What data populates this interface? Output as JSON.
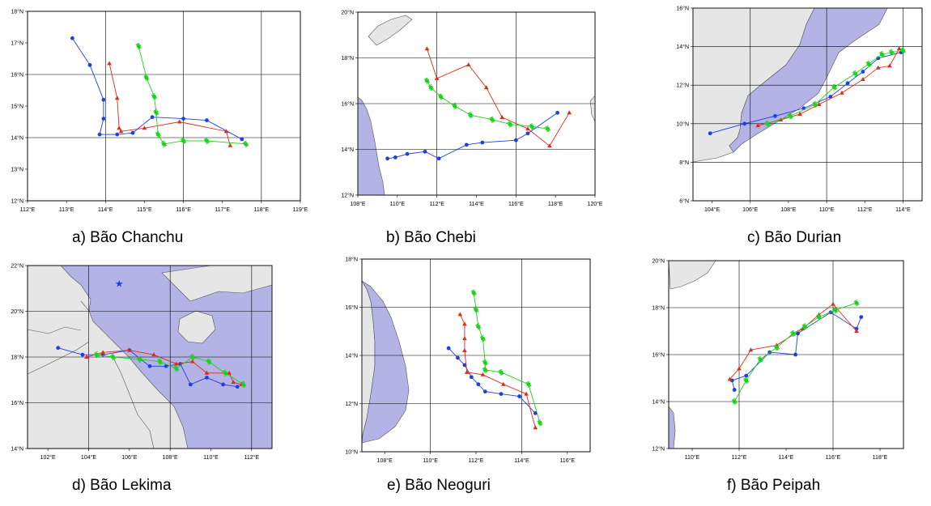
{
  "colors": {
    "land": "#e6e6e6",
    "land_stroke": "#555555",
    "sea": "#b3b3e6",
    "grid": "#000000",
    "track_blue": "#1f3fe0",
    "track_red": "#e02b1a",
    "track_green": "#19d419"
  },
  "panels": [
    {
      "id": "a",
      "caption": "a) Bão Chanchu",
      "xticks": [
        {
          "v": 112,
          "t": "112°E"
        },
        {
          "v": 113,
          "t": "113°E"
        },
        {
          "v": 114,
          "t": "114°E"
        },
        {
          "v": 115,
          "t": "115°E"
        },
        {
          "v": 116,
          "t": "116°E"
        },
        {
          "v": 117,
          "t": "117°E"
        },
        {
          "v": 118,
          "t": "118°E"
        },
        {
          "v": 119,
          "t": "119°E"
        }
      ],
      "yticks": [
        {
          "v": 12,
          "t": "12°N"
        },
        {
          "v": 13,
          "t": "13°N"
        },
        {
          "v": 14,
          "t": "14°N"
        },
        {
          "v": 15,
          "t": "15°N"
        },
        {
          "v": 16,
          "t": "16°N"
        },
        {
          "v": 17,
          "t": "17°N"
        },
        {
          "v": 18,
          "t": "18°N"
        }
      ],
      "lon_range": [
        112,
        119
      ],
      "lat_range": [
        12,
        18
      ],
      "grid_lon": [
        114,
        116,
        118
      ],
      "grid_lat": [
        14,
        16
      ],
      "tracks": {
        "blue": [
          [
            113.15,
            17.15
          ],
          [
            113.6,
            16.3
          ],
          [
            113.95,
            15.2
          ],
          [
            113.95,
            14.6
          ],
          [
            113.85,
            14.1
          ],
          [
            114.3,
            14.1
          ],
          [
            114.7,
            14.15
          ],
          [
            115.2,
            14.65
          ],
          [
            116.0,
            14.6
          ],
          [
            116.6,
            14.55
          ],
          [
            117.5,
            13.95
          ]
        ],
        "red": [
          [
            114.1,
            16.35
          ],
          [
            114.3,
            15.25
          ],
          [
            114.35,
            14.3
          ],
          [
            114.4,
            14.2
          ],
          [
            115.0,
            14.3
          ],
          [
            115.9,
            14.5
          ],
          [
            117.1,
            14.2
          ],
          [
            117.2,
            13.75
          ]
        ],
        "green": [
          [
            114.85,
            16.9
          ],
          [
            115.05,
            15.9
          ],
          [
            115.25,
            15.3
          ],
          [
            115.3,
            14.8
          ],
          [
            115.35,
            14.1
          ],
          [
            115.5,
            13.8
          ],
          [
            116.0,
            13.9
          ],
          [
            116.6,
            13.9
          ],
          [
            117.6,
            13.8
          ]
        ]
      }
    },
    {
      "id": "b",
      "caption": "b) Bão Chebi",
      "xticks": [
        {
          "v": 108,
          "t": "108°E"
        },
        {
          "v": 110,
          "t": "110°E"
        },
        {
          "v": 112,
          "t": "112°E"
        },
        {
          "v": 114,
          "t": "114°E"
        },
        {
          "v": 116,
          "t": "116°E"
        },
        {
          "v": 118,
          "t": "118°E"
        },
        {
          "v": 120,
          "t": "120°E"
        }
      ],
      "yticks": [
        {
          "v": 12,
          "t": "12°N"
        },
        {
          "v": 14,
          "t": "14°N"
        },
        {
          "v": 16,
          "t": "16°N"
        },
        {
          "v": 18,
          "t": "18°N"
        },
        {
          "v": 20,
          "t": "20°N"
        }
      ],
      "lon_range": [
        108,
        120
      ],
      "lat_range": [
        12,
        20
      ],
      "grid_lon": [
        112,
        116
      ],
      "grid_lat": [
        14,
        16,
        18
      ],
      "tracks": {
        "blue": [
          [
            109.5,
            13.6
          ],
          [
            109.9,
            13.65
          ],
          [
            110.5,
            13.8
          ],
          [
            111.4,
            13.9
          ],
          [
            112.1,
            13.6
          ],
          [
            113.5,
            14.2
          ],
          [
            114.3,
            14.3
          ],
          [
            116.0,
            14.4
          ],
          [
            116.6,
            14.7
          ],
          [
            118.1,
            15.6
          ]
        ],
        "red": [
          [
            111.5,
            18.4
          ],
          [
            112.0,
            17.1
          ],
          [
            113.6,
            17.7
          ],
          [
            114.5,
            16.7
          ],
          [
            115.3,
            15.4
          ],
          [
            116.6,
            14.9
          ],
          [
            117.7,
            14.15
          ],
          [
            118.7,
            15.6
          ]
        ],
        "green": [
          [
            111.5,
            17.0
          ],
          [
            111.7,
            16.7
          ],
          [
            112.2,
            16.3
          ],
          [
            112.9,
            15.9
          ],
          [
            113.7,
            15.5
          ],
          [
            114.8,
            15.3
          ],
          [
            115.7,
            15.1
          ],
          [
            116.8,
            15.0
          ],
          [
            117.6,
            14.9
          ]
        ]
      }
    },
    {
      "id": "c",
      "caption": "c) Bão Durian",
      "xticks": [
        {
          "v": 104,
          "t": "104°E"
        },
        {
          "v": 106,
          "t": "106°E"
        },
        {
          "v": 108,
          "t": "108°E"
        },
        {
          "v": 110,
          "t": "110°E"
        },
        {
          "v": 112,
          "t": "112°E"
        },
        {
          "v": 114,
          "t": "114°E"
        }
      ],
      "yticks": [
        {
          "v": 6,
          "t": "6°N"
        },
        {
          "v": 8,
          "t": "8°N"
        },
        {
          "v": 10,
          "t": "10°N"
        },
        {
          "v": 12,
          "t": "12°N"
        },
        {
          "v": 14,
          "t": "14°N"
        },
        {
          "v": 16,
          "t": "16°N"
        }
      ],
      "lon_range": [
        103,
        115
      ],
      "lat_range": [
        6,
        16
      ],
      "grid_lon": [
        106,
        110,
        114
      ],
      "grid_lat": [
        8,
        10,
        12,
        14
      ],
      "tracks": {
        "blue": [
          [
            103.9,
            9.5
          ],
          [
            105.7,
            10.0
          ],
          [
            107.3,
            10.4
          ],
          [
            108.8,
            10.8
          ],
          [
            110.2,
            11.4
          ],
          [
            111.1,
            12.1
          ],
          [
            111.9,
            12.7
          ],
          [
            112.7,
            13.4
          ],
          [
            113.9,
            13.7
          ]
        ],
        "red": [
          [
            106.4,
            9.9
          ],
          [
            107.6,
            10.2
          ],
          [
            108.6,
            10.5
          ],
          [
            109.6,
            11.0
          ],
          [
            110.8,
            11.6
          ],
          [
            111.9,
            12.3
          ],
          [
            112.7,
            12.9
          ],
          [
            113.3,
            13.0
          ],
          [
            113.8,
            13.9
          ]
        ],
        "green": [
          [
            106.9,
            10.0
          ],
          [
            108.1,
            10.4
          ],
          [
            109.4,
            11.0
          ],
          [
            110.4,
            11.9
          ],
          [
            111.5,
            12.6
          ],
          [
            112.2,
            13.1
          ],
          [
            112.9,
            13.6
          ],
          [
            113.4,
            13.7
          ],
          [
            114.0,
            13.8
          ]
        ]
      }
    },
    {
      "id": "d",
      "caption": "d) Bão Lekima",
      "xticks": [
        {
          "v": 102,
          "t": "102°E"
        },
        {
          "v": 104,
          "t": "104°E"
        },
        {
          "v": 106,
          "t": "106°E"
        },
        {
          "v": 108,
          "t": "108°E"
        },
        {
          "v": 110,
          "t": "110°E"
        },
        {
          "v": 112,
          "t": "112°E"
        }
      ],
      "yticks": [
        {
          "v": 14,
          "t": "14°N"
        },
        {
          "v": 16,
          "t": "16°N"
        },
        {
          "v": 18,
          "t": "18°N"
        },
        {
          "v": 20,
          "t": "20°N"
        },
        {
          "v": 22,
          "t": "22°N"
        }
      ],
      "lon_range": [
        101,
        113
      ],
      "lat_range": [
        14,
        22
      ],
      "grid_lon": [
        104,
        108,
        112
      ],
      "grid_lat": [
        16,
        18,
        20
      ],
      "star": [
        105.5,
        21.2
      ],
      "tracks": {
        "blue": [
          [
            102.5,
            18.4
          ],
          [
            103.7,
            18.1
          ],
          [
            104.7,
            18.1
          ],
          [
            106.0,
            18.3
          ],
          [
            107.0,
            17.6
          ],
          [
            107.8,
            17.6
          ],
          [
            108.5,
            17.7
          ],
          [
            109.0,
            16.8
          ],
          [
            109.8,
            17.1
          ],
          [
            110.6,
            16.8
          ],
          [
            111.3,
            16.7
          ]
        ],
        "red": [
          [
            103.9,
            18.0
          ],
          [
            104.7,
            18.2
          ],
          [
            106.0,
            18.3
          ],
          [
            107.2,
            18.1
          ],
          [
            108.3,
            17.7
          ],
          [
            109.1,
            17.8
          ],
          [
            109.8,
            17.3
          ],
          [
            110.9,
            17.3
          ],
          [
            111.1,
            16.9
          ],
          [
            111.5,
            16.8
          ]
        ],
        "green": [
          [
            104.4,
            18.1
          ],
          [
            105.2,
            18.0
          ],
          [
            106.5,
            17.9
          ],
          [
            107.5,
            17.8
          ],
          [
            108.3,
            17.5
          ],
          [
            109.1,
            18.0
          ],
          [
            109.9,
            17.8
          ],
          [
            110.7,
            17.3
          ],
          [
            111.6,
            16.8
          ]
        ]
      }
    },
    {
      "id": "e",
      "caption": "e) Bão Neoguri",
      "xticks": [
        {
          "v": 108,
          "t": "108°E"
        },
        {
          "v": 110,
          "t": "110°E"
        },
        {
          "v": 112,
          "t": "112°E"
        },
        {
          "v": 114,
          "t": "114°E"
        },
        {
          "v": 116,
          "t": "116°E"
        }
      ],
      "yticks": [
        {
          "v": 10,
          "t": "10°N"
        },
        {
          "v": 12,
          "t": "12°N"
        },
        {
          "v": 14,
          "t": "14°N"
        },
        {
          "v": 16,
          "t": "16°N"
        },
        {
          "v": 18,
          "t": "18°N"
        }
      ],
      "lon_range": [
        107,
        117
      ],
      "lat_range": [
        10,
        18
      ],
      "grid_lon": [
        110,
        114
      ],
      "grid_lat": [
        12,
        14,
        16
      ],
      "tracks": {
        "blue": [
          [
            110.8,
            14.3
          ],
          [
            111.2,
            13.9
          ],
          [
            111.5,
            13.6
          ],
          [
            111.8,
            13.1
          ],
          [
            112.1,
            12.8
          ],
          [
            112.4,
            12.5
          ],
          [
            113.1,
            12.4
          ],
          [
            113.9,
            12.3
          ],
          [
            114.6,
            11.6
          ]
        ],
        "red": [
          [
            111.3,
            15.7
          ],
          [
            111.5,
            15.3
          ],
          [
            111.5,
            14.7
          ],
          [
            111.5,
            14.2
          ],
          [
            111.6,
            13.3
          ],
          [
            112.3,
            13.2
          ],
          [
            113.2,
            12.8
          ],
          [
            114.2,
            12.4
          ],
          [
            114.6,
            11.0
          ]
        ],
        "green": [
          [
            111.9,
            16.6
          ],
          [
            112.0,
            15.9
          ],
          [
            112.1,
            15.2
          ],
          [
            112.3,
            14.7
          ],
          [
            112.4,
            13.7
          ],
          [
            112.4,
            13.4
          ],
          [
            113.1,
            13.3
          ],
          [
            114.3,
            12.8
          ],
          [
            114.8,
            11.2
          ]
        ]
      }
    },
    {
      "id": "f",
      "caption": "f) Bão Peipah",
      "xticks": [
        {
          "v": 110,
          "t": "110°E"
        },
        {
          "v": 112,
          "t": "112°E"
        },
        {
          "v": 114,
          "t": "114°E"
        },
        {
          "v": 116,
          "t": "116°E"
        },
        {
          "v": 118,
          "t": "118°E"
        }
      ],
      "yticks": [
        {
          "v": 12,
          "t": "12°N"
        },
        {
          "v": 14,
          "t": "14°N"
        },
        {
          "v": 16,
          "t": "16°N"
        },
        {
          "v": 18,
          "t": "18°N"
        },
        {
          "v": 20,
          "t": "20°N"
        }
      ],
      "lon_range": [
        109,
        119
      ],
      "lat_range": [
        12,
        20
      ],
      "grid_lon": [
        112,
        116
      ],
      "grid_lat": [
        14,
        16,
        18
      ],
      "tracks": {
        "blue": [
          [
            111.8,
            14.5
          ],
          [
            111.7,
            14.9
          ],
          [
            112.3,
            15.1
          ],
          [
            113.3,
            16.1
          ],
          [
            114.4,
            16.0
          ],
          [
            114.5,
            16.9
          ],
          [
            115.9,
            17.8
          ],
          [
            117.0,
            17.1
          ],
          [
            117.2,
            17.6
          ]
        ],
        "red": [
          [
            111.6,
            14.95
          ],
          [
            112.0,
            15.4
          ],
          [
            112.5,
            16.2
          ],
          [
            113.6,
            16.4
          ],
          [
            114.7,
            17.1
          ],
          [
            115.4,
            17.7
          ],
          [
            116.0,
            18.15
          ],
          [
            117.0,
            17.0
          ]
        ],
        "green": [
          [
            111.8,
            14.0
          ],
          [
            112.3,
            14.9
          ],
          [
            112.9,
            15.8
          ],
          [
            113.6,
            16.3
          ],
          [
            114.3,
            16.9
          ],
          [
            114.8,
            17.2
          ],
          [
            115.4,
            17.6
          ],
          [
            116.1,
            17.9
          ],
          [
            117.0,
            18.2
          ]
        ]
      }
    }
  ]
}
